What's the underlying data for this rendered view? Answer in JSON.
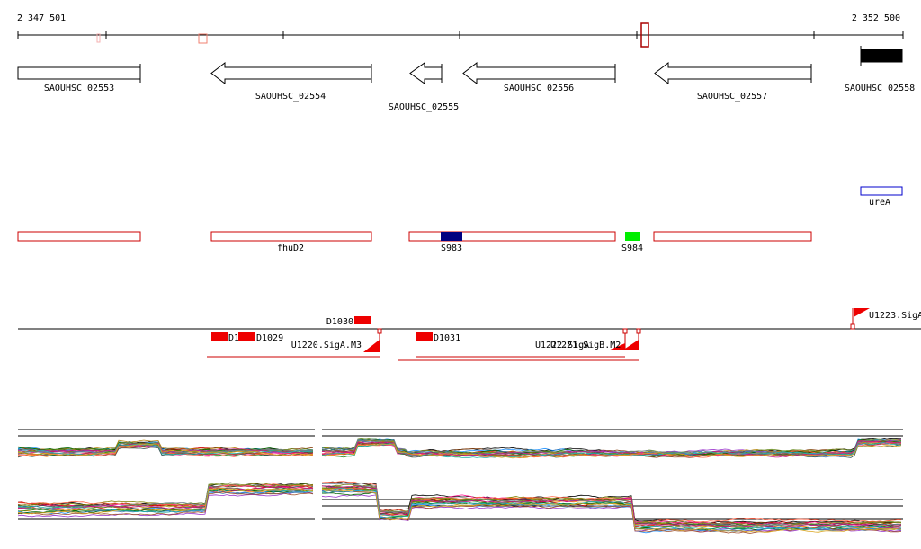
{
  "ruler": {
    "start_label": "2 347 501",
    "end_label": "2 352 500"
  },
  "genes": [
    {
      "label": "SAOUHSC_02553",
      "strand": "+"
    },
    {
      "label": "SAOUHSC_02554",
      "strand": "-"
    },
    {
      "label": "SAOUHSC_02555",
      "strand": "-"
    },
    {
      "label": "SAOUHSC_02556",
      "strand": "-"
    },
    {
      "label": "SAOUHSC_02557",
      "strand": "-"
    },
    {
      "label": "SAOUHSC_02558",
      "strand": "+"
    }
  ],
  "gene_names": {
    "ureA": "ureA",
    "fhuD2": "fhuD2"
  },
  "segments": [
    {
      "label": "S983",
      "color": "#000080"
    },
    {
      "label": "S984",
      "color": "#00ee00"
    }
  ],
  "features": [
    {
      "label": "D1030"
    },
    {
      "label": "D1"
    },
    {
      "label": "D1029"
    },
    {
      "label": "D1031"
    },
    {
      "label": "U1220.SigA.M3"
    },
    {
      "label": "U1221.SigB.M2"
    },
    {
      "label": "U1222.SigA"
    },
    {
      "label": "U1223.SigA"
    }
  ],
  "colors": {
    "feature": "#ee0000",
    "outline": "#cc0000",
    "ureA_box": "#0000cc"
  }
}
